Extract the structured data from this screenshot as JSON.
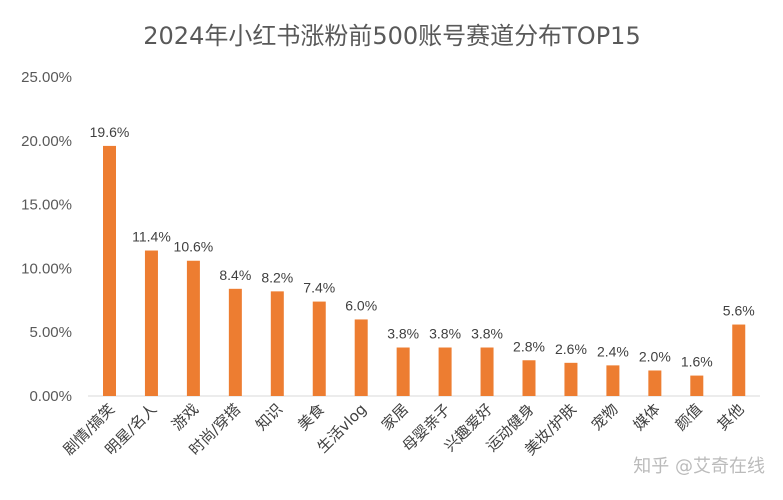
{
  "chart_data": {
    "type": "bar",
    "title": "2024年小红书涨粉前500账号赛道分布TOP15",
    "categories": [
      "剧情/搞笑",
      "明星/名人",
      "游戏",
      "时尚/穿搭",
      "知识",
      "美食",
      "生活vlog",
      "家居",
      "母婴亲子",
      "兴趣爱好",
      "运动健身",
      "美妆/护肤",
      "宠物",
      "媒体",
      "颜值",
      "其他"
    ],
    "values": [
      19.6,
      11.4,
      10.6,
      8.4,
      8.2,
      7.4,
      6.0,
      3.8,
      3.8,
      3.8,
      2.8,
      2.6,
      2.4,
      2.0,
      1.6,
      5.6
    ],
    "data_labels": [
      "19.6%",
      "11.4%",
      "10.6%",
      "8.4%",
      "8.2%",
      "7.4%",
      "6.0%",
      "3.8%",
      "3.8%",
      "3.8%",
      "2.8%",
      "2.6%",
      "2.4%",
      "2.0%",
      "1.6%",
      "5.6%"
    ],
    "y_ticks": [
      "0.00%",
      "5.00%",
      "10.00%",
      "15.00%",
      "20.00%",
      "25.00%"
    ],
    "ylim": [
      0,
      25
    ],
    "grid": false,
    "legend": "none",
    "bar_color": "#ED7D31",
    "xlabel": "",
    "ylabel": ""
  },
  "watermark": "知乎 @艾奇在线"
}
